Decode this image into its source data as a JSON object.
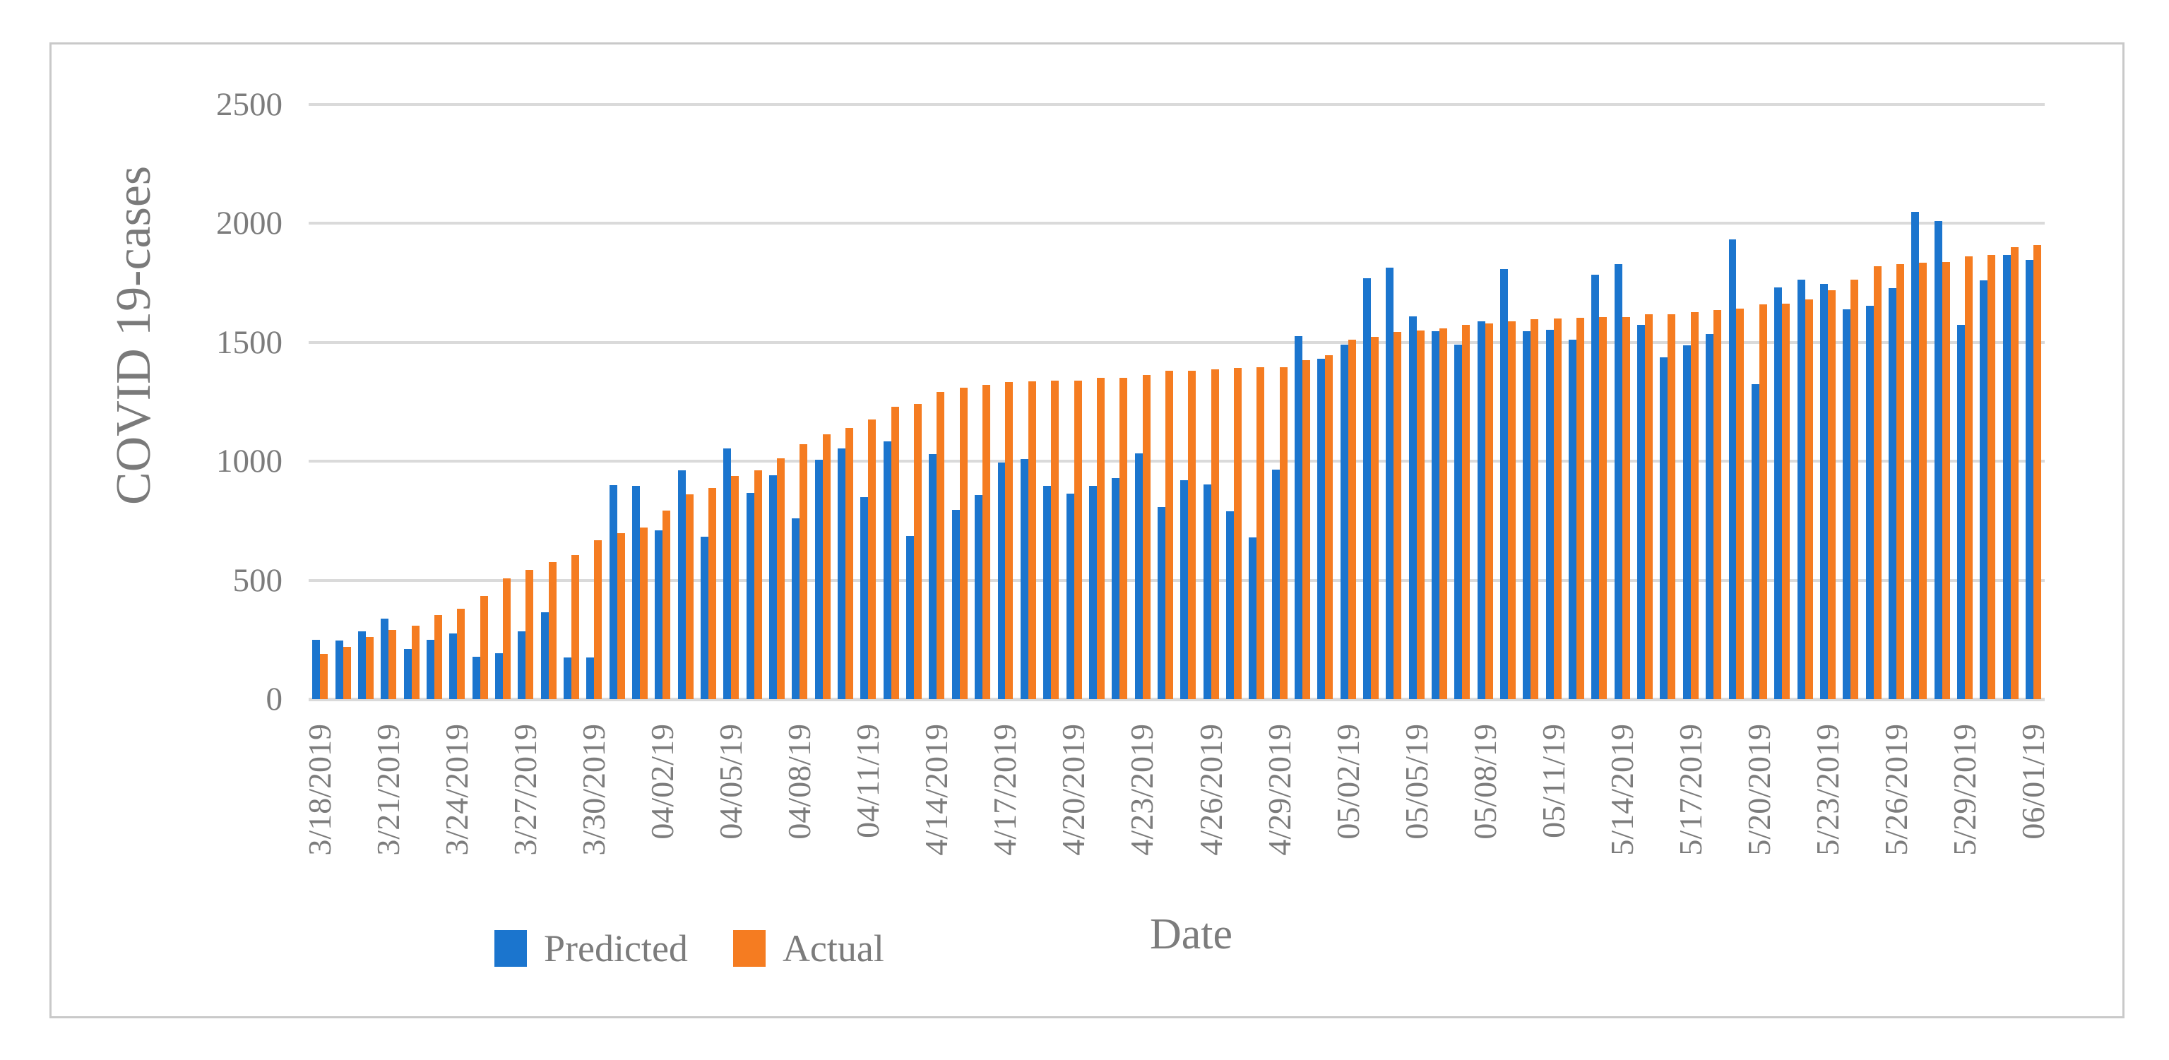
{
  "chart_data": {
    "type": "bar",
    "title": "",
    "ylabel": "COVID 19-cases",
    "xlabel": "Date",
    "ylim": [
      0,
      2500
    ],
    "yticks": [
      2500,
      2000,
      1500,
      1000,
      500,
      0
    ],
    "grid": true,
    "legend_position": "bottom",
    "x_tick_every_days": 3,
    "x_tick_labels": [
      "3/18/2019",
      "3/21/2019",
      "3/24/2019",
      "3/27/2019",
      "3/30/2019",
      "04/02/19",
      "04/05/19",
      "04/08/19",
      "04/11/19",
      "4/14/2019",
      "4/17/2019",
      "4/20/2019",
      "4/23/2019",
      "4/26/2019",
      "4/29/2019",
      "05/02/19",
      "05/05/19",
      "05/08/19",
      "05/11/19",
      "5/14/2019",
      "5/17/2019",
      "5/20/2019",
      "5/23/2019",
      "5/26/2019",
      "5/29/2019",
      "06/01/19"
    ],
    "series": [
      {
        "name": "Predicted",
        "color": "#1b75ce",
        "values": [
          250,
          245,
          285,
          340,
          210,
          250,
          277,
          178,
          193,
          286,
          364,
          176,
          176,
          899,
          896,
          709,
          961,
          684,
          1053,
          868,
          942,
          760,
          1007,
          1055,
          850,
          1084,
          685,
          1031,
          796,
          859,
          995,
          1010,
          898,
          865,
          898,
          928,
          1032,
          808,
          920,
          903,
          790,
          680,
          965,
          1525,
          1432,
          1490,
          1770,
          1815,
          1610,
          1548,
          1491,
          1589,
          1809,
          1548,
          1552,
          1510,
          1785,
          1828,
          1574,
          1438,
          1489,
          1535,
          1932,
          1325,
          1732,
          1765,
          1747,
          1640,
          1655,
          1729,
          2050,
          2009,
          1574,
          1762,
          1869,
          1848
        ]
      },
      {
        "name": "Actual",
        "color": "#f57c21",
        "values": [
          190,
          220,
          262,
          292,
          308,
          354,
          380,
          434,
          508,
          542,
          575,
          606,
          668,
          699,
          723,
          794,
          860,
          887,
          937,
          962,
          1013,
          1072,
          1114,
          1141,
          1177,
          1230,
          1242,
          1292,
          1310,
          1322,
          1332,
          1337,
          1340,
          1340,
          1350,
          1350,
          1364,
          1380,
          1382,
          1388,
          1392,
          1396,
          1396,
          1424,
          1447,
          1510,
          1522,
          1543,
          1549,
          1560,
          1574,
          1580,
          1589,
          1596,
          1601,
          1602,
          1605,
          1605,
          1618,
          1617,
          1628,
          1636,
          1643,
          1661,
          1664,
          1682,
          1720,
          1765,
          1820,
          1830,
          1834,
          1837,
          1861,
          1869,
          1899,
          1908
        ]
      }
    ],
    "colors": {
      "gridline": "#dadada",
      "axis_text": "#7c7c7c",
      "frame_border": "#c9c9c9"
    }
  }
}
